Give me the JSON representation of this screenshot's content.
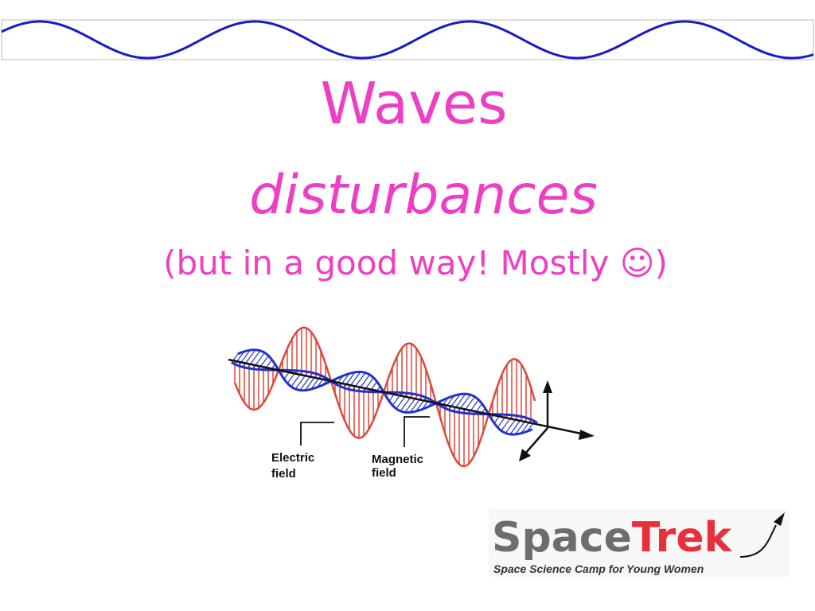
{
  "slide": {
    "title": "Waves",
    "subtitle": "disturbances",
    "caption": "(but in a good way! Mostly ☺)",
    "diagram": {
      "electric_label": [
        "Electric",
        "field"
      ],
      "magnetic_label": [
        "Magnetic",
        "field"
      ]
    },
    "logo": {
      "name_part1": "Space",
      "name_part2": "Trek",
      "tagline": "Space Science Camp for Young Women"
    }
  }
}
